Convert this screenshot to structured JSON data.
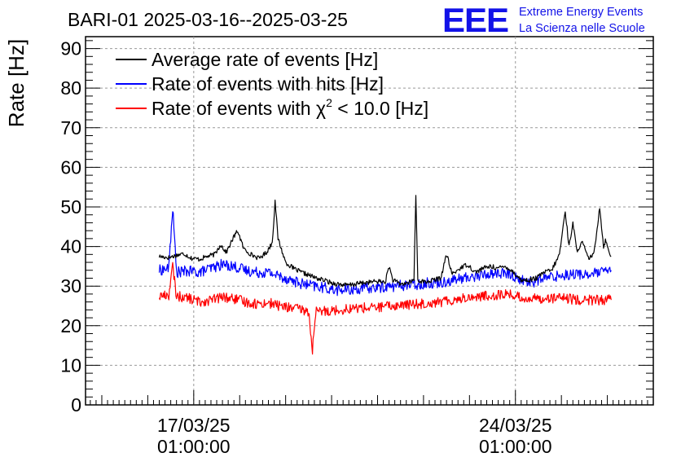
{
  "header": {
    "title": "BARI-01 2025-03-16--2025-03-25",
    "logo_text": "EEE",
    "logo_line1": "Extreme Energy Events",
    "logo_line2": "La Scienza nelle Scuole"
  },
  "chart_data": {
    "type": "line",
    "title": "BARI-01 2025-03-16--2025-03-25",
    "ylabel": "Rate [Hz]",
    "xlabel": "",
    "ylim": [
      0,
      93
    ],
    "yticks": [
      0,
      10,
      20,
      30,
      40,
      50,
      60,
      70,
      80,
      90
    ],
    "xlim": [
      "2025-03-14T16:30:00",
      "2025-03-27T01:00:00"
    ],
    "xticks": [
      {
        "line1": "17/03/25",
        "line2": "01:00:00",
        "t": "2025-03-17T01:00:00"
      },
      {
        "line1": "24/03/25",
        "line2": "01:00:00",
        "t": "2025-03-24T01:00:00"
      }
    ],
    "grid": true,
    "legend_position": "top-left",
    "legend": [
      {
        "label": "Average rate of events [Hz]",
        "color": "#000000"
      },
      {
        "label": "Rate of events with hits [Hz]",
        "color": "#0000ff"
      },
      {
        "label_prefix": "Rate of events with χ",
        "label_sup": "2",
        "label_suffix": " < 10.0 [Hz]",
        "color": "#ff0000"
      }
    ],
    "series": [
      {
        "name": "Average rate of events [Hz]",
        "color": "#000000",
        "points": [
          [
            "2025-03-16T07:00:00",
            37.5
          ],
          [
            "2025-03-16T12:00:00",
            37.2
          ],
          [
            "2025-03-16T16:00:00",
            37.8
          ],
          [
            "2025-03-16T20:00:00",
            38.2
          ],
          [
            "2025-03-17T00:00:00",
            37.0
          ],
          [
            "2025-03-17T04:00:00",
            36.8
          ],
          [
            "2025-03-17T08:00:00",
            37.5
          ],
          [
            "2025-03-17T12:00:00",
            38.0
          ],
          [
            "2025-03-17T15:00:00",
            40.5
          ],
          [
            "2025-03-17T18:00:00",
            38.5
          ],
          [
            "2025-03-17T22:00:00",
            42.5
          ],
          [
            "2025-03-18T00:00:00",
            44.0
          ],
          [
            "2025-03-18T03:00:00",
            39.5
          ],
          [
            "2025-03-18T07:00:00",
            38.0
          ],
          [
            "2025-03-18T11:00:00",
            37.0
          ],
          [
            "2025-03-18T15:00:00",
            38.5
          ],
          [
            "2025-03-18T18:00:00",
            41.0
          ],
          [
            "2025-03-18T19:30:00",
            51.5
          ],
          [
            "2025-03-18T21:00:00",
            42.0
          ],
          [
            "2025-03-19T01:00:00",
            36.0
          ],
          [
            "2025-03-19T05:00:00",
            34.5
          ],
          [
            "2025-03-19T09:00:00",
            33.5
          ],
          [
            "2025-03-19T13:00:00",
            32.8
          ],
          [
            "2025-03-19T17:00:00",
            32.0
          ],
          [
            "2025-03-19T21:00:00",
            31.5
          ],
          [
            "2025-03-20T01:00:00",
            30.8
          ],
          [
            "2025-03-20T05:00:00",
            30.5
          ],
          [
            "2025-03-20T09:00:00",
            30.2
          ],
          [
            "2025-03-20T13:00:00",
            30.5
          ],
          [
            "2025-03-20T17:00:00",
            30.8
          ],
          [
            "2025-03-20T21:00:00",
            31.0
          ],
          [
            "2025-03-21T01:00:00",
            31.2
          ],
          [
            "2025-03-21T05:00:00",
            31.0
          ],
          [
            "2025-03-21T07:00:00",
            35.0
          ],
          [
            "2025-03-21T09:00:00",
            31.5
          ],
          [
            "2025-03-21T13:00:00",
            30.5
          ],
          [
            "2025-03-21T17:00:00",
            30.8
          ],
          [
            "2025-03-21T20:00:00",
            31.5
          ],
          [
            "2025-03-21T21:00:00",
            53.0
          ],
          [
            "2025-03-21T22:00:00",
            31.5
          ],
          [
            "2025-03-22T02:00:00",
            31.0
          ],
          [
            "2025-03-22T06:00:00",
            31.5
          ],
          [
            "2025-03-22T10:00:00",
            32.0
          ],
          [
            "2025-03-22T13:00:00",
            38.0
          ],
          [
            "2025-03-22T16:00:00",
            33.0
          ],
          [
            "2025-03-22T20:00:00",
            34.5
          ],
          [
            "2025-03-23T00:00:00",
            35.5
          ],
          [
            "2025-03-23T04:00:00",
            33.5
          ],
          [
            "2025-03-23T08:00:00",
            34.5
          ],
          [
            "2025-03-23T12:00:00",
            35.0
          ],
          [
            "2025-03-23T16:00:00",
            34.5
          ],
          [
            "2025-03-23T20:00:00",
            35.0
          ],
          [
            "2025-03-24T00:00:00",
            33.5
          ],
          [
            "2025-03-24T04:00:00",
            31.5
          ],
          [
            "2025-03-24T08:00:00",
            31.5
          ],
          [
            "2025-03-24T12:00:00",
            32.0
          ],
          [
            "2025-03-24T16:00:00",
            33.5
          ],
          [
            "2025-03-24T20:00:00",
            34.0
          ],
          [
            "2025-03-25T00:00:00",
            38.0
          ],
          [
            "2025-03-25T03:00:00",
            49.0
          ],
          [
            "2025-03-25T05:00:00",
            40.0
          ],
          [
            "2025-03-25T07:00:00",
            46.0
          ],
          [
            "2025-03-25T09:00:00",
            39.0
          ],
          [
            "2025-03-25T12:00:00",
            41.0
          ],
          [
            "2025-03-25T15:00:00",
            37.0
          ],
          [
            "2025-03-25T18:00:00",
            38.0
          ],
          [
            "2025-03-25T21:00:00",
            50.0
          ],
          [
            "2025-03-25T23:00:00",
            40.0
          ],
          [
            "2025-03-26T00:00:00",
            41.5
          ],
          [
            "2025-03-26T03:00:00",
            37.5
          ]
        ]
      },
      {
        "name": "Rate of events with hits [Hz]",
        "color": "#0000ff",
        "points": [
          [
            "2025-03-16T07:00:00",
            34.0
          ],
          [
            "2025-03-16T12:00:00",
            34.5
          ],
          [
            "2025-03-16T14:00:00",
            50.0
          ],
          [
            "2025-03-16T16:00:00",
            33.5
          ],
          [
            "2025-03-16T22:00:00",
            33.8
          ],
          [
            "2025-03-17T04:00:00",
            33.5
          ],
          [
            "2025-03-17T10:00:00",
            34.5
          ],
          [
            "2025-03-17T16:00:00",
            35.5
          ],
          [
            "2025-03-17T22:00:00",
            35.0
          ],
          [
            "2025-03-18T04:00:00",
            34.0
          ],
          [
            "2025-03-18T10:00:00",
            33.5
          ],
          [
            "2025-03-18T16:00:00",
            33.5
          ],
          [
            "2025-03-18T22:00:00",
            32.5
          ],
          [
            "2025-03-19T04:00:00",
            31.5
          ],
          [
            "2025-03-19T10:00:00",
            30.5
          ],
          [
            "2025-03-19T16:00:00",
            30.0
          ],
          [
            "2025-03-19T22:00:00",
            29.5
          ],
          [
            "2025-03-20T04:00:00",
            29.0
          ],
          [
            "2025-03-20T10:00:00",
            29.0
          ],
          [
            "2025-03-20T16:00:00",
            29.3
          ],
          [
            "2025-03-20T22:00:00",
            29.5
          ],
          [
            "2025-03-21T04:00:00",
            29.8
          ],
          [
            "2025-03-21T10:00:00",
            30.0
          ],
          [
            "2025-03-21T16:00:00",
            30.3
          ],
          [
            "2025-03-21T22:00:00",
            30.5
          ],
          [
            "2025-03-22T04:00:00",
            30.8
          ],
          [
            "2025-03-22T10:00:00",
            31.0
          ],
          [
            "2025-03-22T16:00:00",
            31.5
          ],
          [
            "2025-03-22T22:00:00",
            32.0
          ],
          [
            "2025-03-23T04:00:00",
            32.5
          ],
          [
            "2025-03-23T10:00:00",
            33.0
          ],
          [
            "2025-03-23T16:00:00",
            33.3
          ],
          [
            "2025-03-23T22:00:00",
            33.0
          ],
          [
            "2025-03-24T04:00:00",
            31.5
          ],
          [
            "2025-03-24T10:00:00",
            31.0
          ],
          [
            "2025-03-24T16:00:00",
            32.0
          ],
          [
            "2025-03-24T22:00:00",
            32.5
          ],
          [
            "2025-03-25T04:00:00",
            33.0
          ],
          [
            "2025-03-25T10:00:00",
            33.0
          ],
          [
            "2025-03-25T16:00:00",
            33.0
          ],
          [
            "2025-03-25T22:00:00",
            33.5
          ],
          [
            "2025-03-26T03:00:00",
            34.0
          ]
        ]
      },
      {
        "name": "Rate of events with χ² < 10.0 [Hz]",
        "color": "#ff0000",
        "points": [
          [
            "2025-03-16T07:00:00",
            27.5
          ],
          [
            "2025-03-16T12:00:00",
            27.8
          ],
          [
            "2025-03-16T14:00:00",
            35.0
          ],
          [
            "2025-03-16T16:00:00",
            27.5
          ],
          [
            "2025-03-16T22:00:00",
            27.0
          ],
          [
            "2025-03-17T04:00:00",
            26.0
          ],
          [
            "2025-03-17T10:00:00",
            26.5
          ],
          [
            "2025-03-17T16:00:00",
            27.2
          ],
          [
            "2025-03-17T22:00:00",
            26.8
          ],
          [
            "2025-03-18T04:00:00",
            26.0
          ],
          [
            "2025-03-18T10:00:00",
            25.5
          ],
          [
            "2025-03-18T16:00:00",
            25.8
          ],
          [
            "2025-03-18T22:00:00",
            25.0
          ],
          [
            "2025-03-19T04:00:00",
            24.5
          ],
          [
            "2025-03-19T10:00:00",
            24.0
          ],
          [
            "2025-03-19T13:00:00",
            23.5
          ],
          [
            "2025-03-19T15:00:00",
            14.0
          ],
          [
            "2025-03-19T17:00:00",
            23.5
          ],
          [
            "2025-03-19T22:00:00",
            23.8
          ],
          [
            "2025-03-20T04:00:00",
            24.0
          ],
          [
            "2025-03-20T10:00:00",
            24.3
          ],
          [
            "2025-03-20T16:00:00",
            24.5
          ],
          [
            "2025-03-20T22:00:00",
            24.5
          ],
          [
            "2025-03-21T04:00:00",
            24.8
          ],
          [
            "2025-03-21T10:00:00",
            25.0
          ],
          [
            "2025-03-21T16:00:00",
            25.3
          ],
          [
            "2025-03-21T22:00:00",
            25.5
          ],
          [
            "2025-03-22T04:00:00",
            25.8
          ],
          [
            "2025-03-22T10:00:00",
            26.0
          ],
          [
            "2025-03-22T16:00:00",
            26.5
          ],
          [
            "2025-03-22T22:00:00",
            27.0
          ],
          [
            "2025-03-23T04:00:00",
            27.3
          ],
          [
            "2025-03-23T10:00:00",
            27.5
          ],
          [
            "2025-03-23T16:00:00",
            27.8
          ],
          [
            "2025-03-23T22:00:00",
            28.0
          ],
          [
            "2025-03-24T04:00:00",
            27.0
          ],
          [
            "2025-03-24T10:00:00",
            26.8
          ],
          [
            "2025-03-24T16:00:00",
            27.0
          ],
          [
            "2025-03-24T22:00:00",
            27.0
          ],
          [
            "2025-03-25T04:00:00",
            26.8
          ],
          [
            "2025-03-25T10:00:00",
            26.5
          ],
          [
            "2025-03-25T16:00:00",
            26.5
          ],
          [
            "2025-03-25T22:00:00",
            26.5
          ],
          [
            "2025-03-26T03:00:00",
            26.5
          ]
        ]
      }
    ]
  }
}
